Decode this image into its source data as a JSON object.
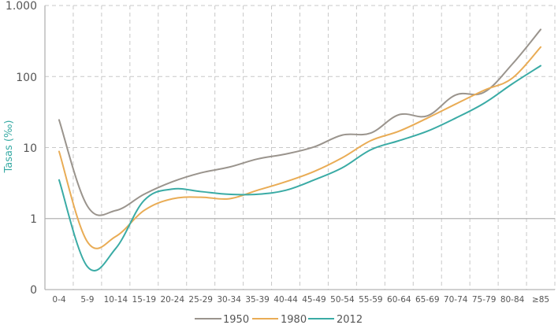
{
  "chart_data": {
    "type": "line",
    "title": "",
    "xlabel": "",
    "ylabel": "Tasas (‰)",
    "yscale": "log",
    "ylim": [
      0.1,
      1000
    ],
    "yticks": [
      {
        "value": 1000,
        "label": "1.000"
      },
      {
        "value": 100,
        "label": "100"
      },
      {
        "value": 10,
        "label": "10"
      },
      {
        "value": 1,
        "label": "1"
      },
      {
        "value": 0.1,
        "label": "0"
      }
    ],
    "grid": true,
    "legend_position": "bottom",
    "categories": [
      "0-4",
      "5-9",
      "10-14",
      "15-19",
      "20-24",
      "25-29",
      "30-34",
      "35-39",
      "40-44",
      "45-49",
      "50-54",
      "55-59",
      "60-64",
      "65-69",
      "70-74",
      "75-79",
      "80-84",
      "≥85"
    ],
    "series": [
      {
        "name": "1950",
        "color": "#9a948d",
        "values": [
          24.5,
          1.5,
          1.3,
          2.2,
          3.3,
          4.4,
          5.3,
          6.9,
          8.1,
          10.2,
          15.0,
          16.0,
          29.0,
          28.0,
          55.0,
          60.0,
          150.0,
          460.0
        ]
      },
      {
        "name": "1980",
        "color": "#e9ac55",
        "values": [
          8.8,
          0.47,
          0.56,
          1.3,
          1.9,
          2.0,
          1.9,
          2.5,
          3.3,
          4.6,
          7.2,
          12.5,
          17.0,
          26.0,
          41.0,
          64.0,
          95.0,
          260.0
        ]
      },
      {
        "name": "2012",
        "color": "#3aaba5",
        "values": [
          3.5,
          0.21,
          0.38,
          1.8,
          2.6,
          2.4,
          2.2,
          2.2,
          2.5,
          3.5,
          5.2,
          9.3,
          12.5,
          17.0,
          26.0,
          42.0,
          79.0,
          142.0
        ]
      }
    ]
  },
  "legend": {
    "items": [
      {
        "label": "1950",
        "color": "#9a948d"
      },
      {
        "label": "1980",
        "color": "#e9ac55"
      },
      {
        "label": "2012",
        "color": "#3aaba5"
      }
    ]
  },
  "colors": {
    "axis": "#b3b3b3",
    "grid": "#c8c8c8",
    "tick_text": "#555555",
    "ylabel": "#3aaba5"
  }
}
